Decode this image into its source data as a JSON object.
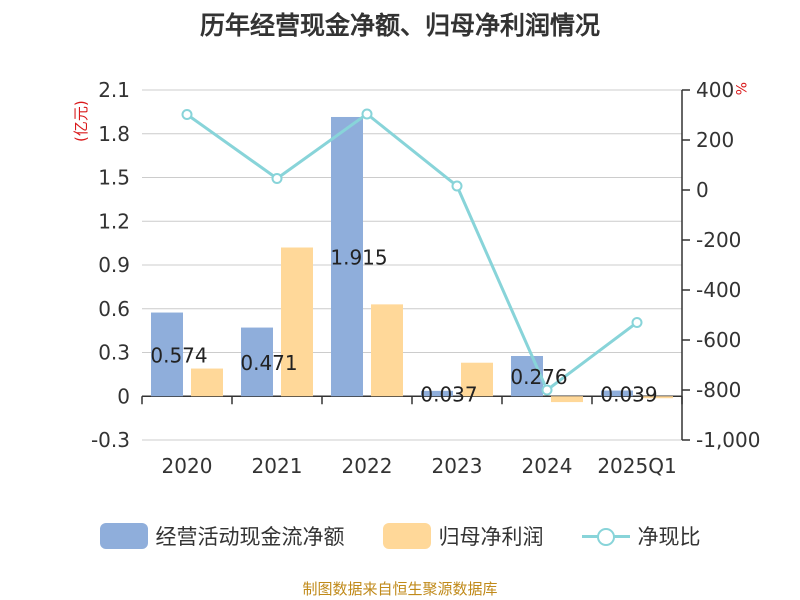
{
  "chart_data": {
    "type": "bar",
    "title": "历年经营现金净额、归母净利润情况",
    "categories": [
      "2020",
      "2021",
      "2022",
      "2023",
      "2024",
      "2025Q1"
    ],
    "series": [
      {
        "name": "经营活动现金流净额",
        "values": [
          0.574,
          0.471,
          1.915,
          0.037,
          0.276,
          0.039
        ],
        "color": "#8faedb",
        "axis": "left"
      },
      {
        "name": "归母净利润",
        "values": [
          0.19,
          1.02,
          0.63,
          0.23,
          -0.04,
          -0.01
        ],
        "color": "#ffd899",
        "axis": "left"
      },
      {
        "name": "净现比",
        "type": "line",
        "values": [
          302,
          46,
          304,
          16,
          -800,
          -530
        ],
        "color": "#88d4d9",
        "axis": "right"
      }
    ],
    "data_labels": [
      "0.574",
      "0.471",
      "1.915",
      "0.037",
      "0.276",
      "0.039"
    ],
    "yleft": {
      "label": "(亿元)",
      "ylim": [
        -0.3,
        2.1
      ],
      "ticks": [
        "-0.3",
        "0",
        "0.3",
        "0.6",
        "0.9",
        "1.2",
        "1.5",
        "1.8",
        "2.1"
      ],
      "tick_values": [
        -0.3,
        0,
        0.3,
        0.6,
        0.9,
        1.2,
        1.5,
        1.8,
        2.1
      ]
    },
    "yright": {
      "label": "%",
      "ylim": [
        -1000,
        400
      ],
      "ticks": [
        "-1,000",
        "-800",
        "-600",
        "-400",
        "-200",
        "0",
        "200",
        "400"
      ],
      "tick_values": [
        -1000,
        -800,
        -600,
        -400,
        -200,
        0,
        200,
        400
      ]
    },
    "grid": true,
    "legend": "bottom"
  },
  "legend": {
    "items": [
      "经营活动现金流净额",
      "归母净利润",
      "净现比"
    ]
  },
  "source": "制图数据来自恒生聚源数据库",
  "colors": {
    "bar1": "#8faedb",
    "bar2": "#ffd899",
    "line": "#88d4d9",
    "unit": "#d9191b",
    "source": "#c08a1a"
  }
}
